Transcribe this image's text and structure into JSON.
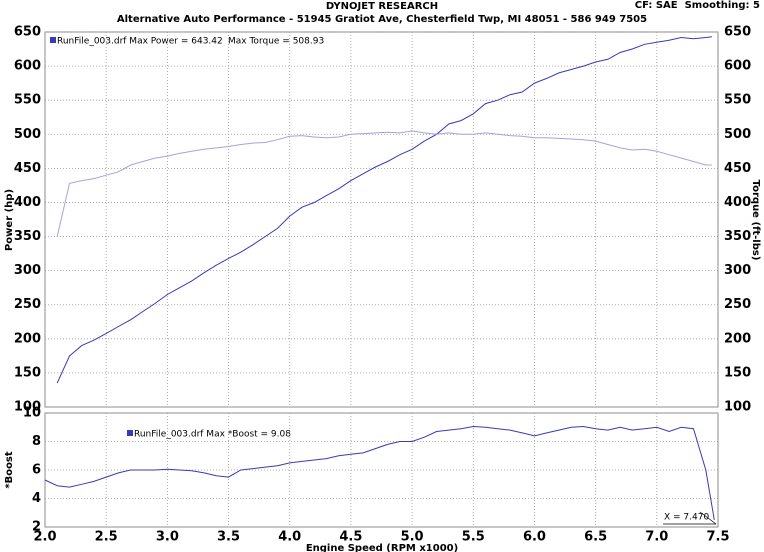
{
  "header": {
    "title": "DYNOJET RESEARCH",
    "subtitle": "Alternative Auto Performance - 51945 Gratiot Ave, Chesterfield Twp, MI 48051 - 586 949 7505",
    "note": "CF: SAE  Smoothing: 5"
  },
  "chart_data": [
    {
      "type": "line",
      "ylabel": "Power (hp)",
      "y2label": "Torque (ft-lbs)",
      "legend": [
        "RunFile_003.drf Max Power = 643.42",
        "Max Torque = 508.93"
      ],
      "x": [
        2.1,
        2.2,
        2.3,
        2.4,
        2.5,
        2.6,
        2.7,
        2.8,
        2.9,
        3.0,
        3.1,
        3.2,
        3.3,
        3.4,
        3.5,
        3.6,
        3.7,
        3.8,
        3.9,
        4.0,
        4.1,
        4.2,
        4.3,
        4.4,
        4.5,
        4.6,
        4.7,
        4.8,
        4.9,
        5.0,
        5.1,
        5.2,
        5.3,
        5.4,
        5.5,
        5.6,
        5.7,
        5.8,
        5.9,
        6.0,
        6.1,
        6.2,
        6.3,
        6.4,
        6.5,
        6.6,
        6.7,
        6.8,
        6.9,
        7.0,
        7.1,
        7.2,
        7.3,
        7.4,
        7.45
      ],
      "series": [
        {
          "name": "Power",
          "color": "#3a3ab4",
          "axis": "y",
          "values": [
            135,
            175,
            190,
            198,
            208,
            218,
            228,
            240,
            252,
            265,
            275,
            285,
            297,
            308,
            318,
            327,
            338,
            350,
            362,
            380,
            393,
            400,
            410,
            420,
            432,
            442,
            452,
            460,
            470,
            478,
            490,
            500,
            515,
            520,
            530,
            545,
            550,
            558,
            562,
            575,
            582,
            590,
            595,
            600,
            606,
            610,
            620,
            625,
            632,
            635,
            638,
            642,
            640,
            642,
            643
          ]
        },
        {
          "name": "Torque",
          "color": "#a4a4dc",
          "axis": "y2",
          "values": [
            350,
            428,
            432,
            435,
            440,
            445,
            455,
            460,
            465,
            468,
            472,
            475,
            478,
            480,
            482,
            485,
            487,
            488,
            492,
            497,
            498,
            496,
            495,
            496,
            500,
            501,
            502,
            503,
            502,
            505,
            502,
            500,
            502,
            500,
            500,
            502,
            500,
            498,
            497,
            495,
            495,
            494,
            493,
            492,
            490,
            485,
            480,
            477,
            478,
            475,
            470,
            465,
            460,
            455,
            455
          ]
        }
      ],
      "xlim": [
        2,
        7.5
      ],
      "xticks": [
        2,
        2.5,
        3,
        3.5,
        4,
        4.5,
        5,
        5.5,
        6,
        6.5,
        7,
        7.5
      ],
      "ylim": [
        100,
        650
      ],
      "yticks": [
        100,
        150,
        200,
        250,
        300,
        350,
        400,
        450,
        500,
        550,
        600,
        650
      ],
      "y2lim": [
        100,
        650
      ],
      "y2ticks": [
        100,
        150,
        200,
        250,
        300,
        350,
        400,
        450,
        500,
        550,
        600,
        650
      ],
      "grid": true
    },
    {
      "type": "line",
      "ylabel": "*Boost",
      "xlabel": "Engine Speed (RPM x1000)",
      "legend": [
        "RunFile_003.drf Max *Boost = 9.08"
      ],
      "annotation": "X = 7.470",
      "x": [
        2.0,
        2.1,
        2.2,
        2.3,
        2.4,
        2.5,
        2.6,
        2.7,
        2.8,
        2.9,
        3.0,
        3.1,
        3.2,
        3.3,
        3.4,
        3.5,
        3.6,
        3.7,
        3.8,
        3.9,
        4.0,
        4.1,
        4.2,
        4.3,
        4.4,
        4.5,
        4.6,
        4.7,
        4.8,
        4.9,
        5.0,
        5.1,
        5.2,
        5.3,
        5.4,
        5.5,
        5.6,
        5.7,
        5.8,
        5.9,
        6.0,
        6.1,
        6.2,
        6.3,
        6.4,
        6.5,
        6.6,
        6.7,
        6.8,
        6.9,
        7.0,
        7.1,
        7.2,
        7.3,
        7.4,
        7.47
      ],
      "series": [
        {
          "name": "*Boost",
          "color": "#3a3ab4",
          "values": [
            5.3,
            4.9,
            4.8,
            5.0,
            5.2,
            5.5,
            5.8,
            6.0,
            6.0,
            6.0,
            6.05,
            6.0,
            5.95,
            5.8,
            5.6,
            5.5,
            6.0,
            6.1,
            6.2,
            6.3,
            6.5,
            6.6,
            6.7,
            6.8,
            7.0,
            7.1,
            7.2,
            7.5,
            7.8,
            8.0,
            8.0,
            8.3,
            8.7,
            8.8,
            8.9,
            9.05,
            9.0,
            8.9,
            8.8,
            8.6,
            8.4,
            8.6,
            8.8,
            9.0,
            9.05,
            8.9,
            8.8,
            9.0,
            8.8,
            8.9,
            9.0,
            8.7,
            9.0,
            8.9,
            6.0,
            2.5
          ]
        }
      ],
      "xlim": [
        2,
        7.5
      ],
      "xticks": [
        {
          "value": 2,
          "label": "2.0"
        },
        {
          "value": 2.5,
          "label": "2.5"
        },
        {
          "value": 3,
          "label": "3.0"
        },
        {
          "value": 3.5,
          "label": "3.5"
        },
        {
          "value": 4,
          "label": "4.0"
        },
        {
          "value": 4.5,
          "label": "4.5"
        },
        {
          "value": 5,
          "label": "5.0"
        },
        {
          "value": 5.5,
          "label": "5.5"
        },
        {
          "value": 6,
          "label": "6.0"
        },
        {
          "value": 6.5,
          "label": "6.5"
        },
        {
          "value": 7,
          "label": "7.0"
        },
        {
          "value": 7.5,
          "label": "7.5"
        }
      ],
      "ylim": [
        2,
        10
      ],
      "yticks": [
        2,
        4,
        6,
        8,
        10
      ],
      "grid": true
    }
  ]
}
